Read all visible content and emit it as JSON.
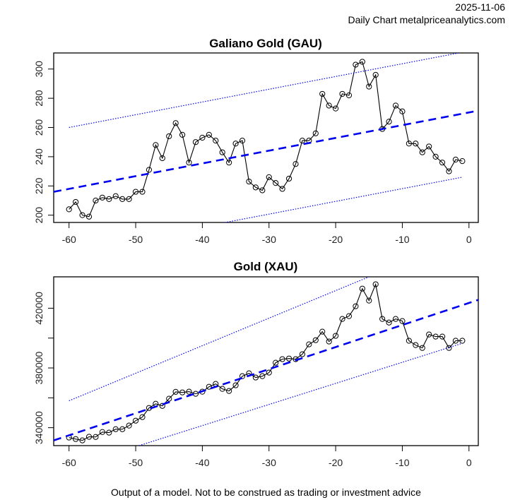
{
  "header": {
    "date": "2025-11-06",
    "site": "Daily Chart metalpriceanalytics.com"
  },
  "footer": "Output of a model. Not to be construed as trading or investment advice",
  "colors": {
    "price": "#000000",
    "trend": "#0000EE",
    "band": "#0000EE"
  },
  "chart_data": [
    {
      "type": "line",
      "title": "Galiano Gold (GAU)",
      "xlabel": "",
      "ylabel": "",
      "xlim": [
        -62.3,
        1.4
      ],
      "ylim": [
        195,
        311
      ],
      "xticks": [
        -60,
        -50,
        -40,
        -30,
        -20,
        -10,
        0
      ],
      "xtick_labels": [
        "-60",
        "-50",
        "-40",
        "-30",
        "-20",
        "-10",
        "0"
      ],
      "yticks": [
        200,
        220,
        240,
        260,
        280,
        300
      ],
      "ytick_labels": [
        "200",
        "220",
        "240",
        "260",
        "280",
        "300"
      ],
      "grid": false,
      "x": [
        -60,
        -59,
        -58,
        -57,
        -56,
        -55,
        -54,
        -53,
        -52,
        -51,
        -50,
        -49,
        -48,
        -47,
        -46,
        -45,
        -44,
        -43,
        -42,
        -41,
        -40,
        -39,
        -38,
        -37,
        -36,
        -35,
        -34,
        -33,
        -32,
        -31,
        -30,
        -29,
        -28,
        -27,
        -26,
        -25,
        -24,
        -23,
        -22,
        -21,
        -20,
        -19,
        -18,
        -17,
        -16,
        -15,
        -14,
        -13,
        -12,
        -11,
        -10,
        -9,
        -8,
        -7,
        -6,
        -5,
        -4,
        -3,
        -2,
        -1
      ],
      "series": [
        {
          "name": "price",
          "style": "line-circles",
          "values": [
            204,
            209,
            200,
            199,
            210,
            212,
            211,
            213,
            211,
            211,
            216,
            216,
            231,
            248,
            239,
            254,
            263,
            255,
            236,
            250,
            253,
            255,
            251,
            243,
            236,
            249,
            251,
            223,
            219,
            217,
            226,
            222,
            218,
            225,
            235,
            251,
            251,
            256,
            283,
            275,
            273,
            283,
            282,
            303,
            305,
            288,
            296,
            259,
            264,
            275,
            271,
            249,
            249,
            243,
            247,
            240,
            236,
            230,
            238,
            237
          ]
        },
        {
          "name": "trend",
          "style": "dashed",
          "x": [
            -62.3,
            1.4
          ],
          "values": [
            216,
            271.5
          ]
        },
        {
          "name": "upper band",
          "style": "dotted",
          "x": [
            -60,
            -1
          ],
          "values": [
            260,
            311.5
          ]
        },
        {
          "name": "lower band",
          "style": "dotted",
          "x": [
            -37,
            -1
          ],
          "values": [
            194.6,
            226
          ]
        }
      ]
    },
    {
      "type": "line",
      "title": "Gold (XAU)",
      "xlabel": "",
      "ylabel": "",
      "xlim": [
        -62.3,
        1.4
      ],
      "ylim": [
        328000,
        441000
      ],
      "xticks": [
        -60,
        -50,
        -40,
        -30,
        -20,
        -10,
        0
      ],
      "xtick_labels": [
        "-60",
        "-50",
        "-40",
        "-30",
        "-20",
        "-10",
        "0"
      ],
      "yticks": [
        340000,
        360000,
        380000,
        400000,
        420000
      ],
      "ytick_labels": [
        "340000",
        "",
        "380000",
        "",
        "420000"
      ],
      "grid": false,
      "x": [
        -60,
        -59,
        -58,
        -57,
        -56,
        -55,
        -54,
        -53,
        -52,
        -51,
        -50,
        -49,
        -48,
        -47,
        -46,
        -45,
        -44,
        -43,
        -42,
        -41,
        -40,
        -39,
        -38,
        -37,
        -36,
        -35,
        -34,
        -33,
        -32,
        -31,
        -30,
        -29,
        -28,
        -27,
        -26,
        -25,
        -24,
        -23,
        -22,
        -21,
        -20,
        -19,
        -18,
        -17,
        -16,
        -15,
        -14,
        -13,
        -12,
        -11,
        -10,
        -9,
        -8,
        -7,
        -6,
        -5,
        -4,
        -3,
        -2,
        -1
      ],
      "series": [
        {
          "name": "price",
          "style": "line-circles",
          "values": [
            333400,
            332400,
            331500,
            333900,
            333800,
            337100,
            336700,
            339000,
            339000,
            341400,
            344700,
            347100,
            353200,
            356000,
            354600,
            359400,
            364000,
            363600,
            364100,
            362700,
            364100,
            367400,
            369300,
            366000,
            364600,
            368400,
            374500,
            376400,
            373600,
            374500,
            376900,
            383500,
            385900,
            386300,
            385900,
            389200,
            395800,
            398600,
            404300,
            397700,
            401500,
            412800,
            414700,
            421300,
            433100,
            425100,
            436000,
            412800,
            410400,
            412800,
            411400,
            398200,
            395300,
            393400,
            402400,
            401000,
            401000,
            393400,
            398200,
            398200
          ]
        },
        {
          "name": "trend",
          "style": "dashed",
          "x": [
            -62.3,
            1.4
          ],
          "values": [
            331500,
            425600
          ]
        },
        {
          "name": "upper band",
          "style": "dotted",
          "x": [
            -60,
            -15
          ],
          "values": [
            358000,
            441000
          ]
        },
        {
          "name": "lower band",
          "style": "dotted",
          "x": [
            -49.5,
            -1
          ],
          "values": [
            328000,
            396500
          ]
        }
      ]
    }
  ]
}
